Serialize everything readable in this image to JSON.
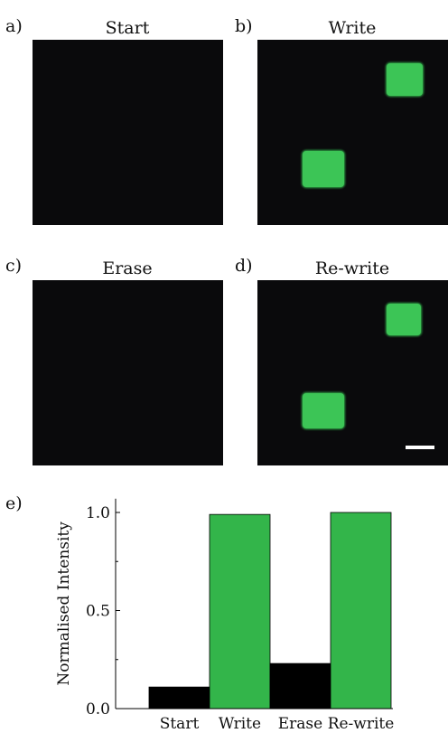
{
  "panels": [
    {
      "letter": "a)",
      "title": "Start",
      "spots": []
    },
    {
      "letter": "b)",
      "title": "Write",
      "spots": [
        {
          "name": "spot-upper"
        },
        {
          "name": "spot-lower"
        }
      ]
    },
    {
      "letter": "c)",
      "title": "Erase",
      "spots": []
    },
    {
      "letter": "d)",
      "title": "Re-write",
      "spots": [
        {
          "name": "spot-upper"
        },
        {
          "name": "spot-lower"
        }
      ]
    }
  ],
  "chart_panel_letter": "e)",
  "colors": {
    "image_background": "#0a0a0c",
    "spot_green": "#3cc556",
    "bar_black": "#000000",
    "bar_green": "#33b54a"
  },
  "chart_data": {
    "type": "bar",
    "categories": [
      "Start",
      "Write",
      "Erase",
      "Re-write"
    ],
    "values": [
      0.11,
      0.99,
      0.23,
      1.0
    ],
    "bar_colors": [
      "#000000",
      "#33b54a",
      "#000000",
      "#33b54a"
    ],
    "xlabel": "",
    "ylabel": "Normalised Intensity",
    "yticks": [
      "0.0",
      "0.5",
      "1.0"
    ],
    "ylim": [
      0,
      1.07
    ],
    "grid": false,
    "legend": "none"
  }
}
